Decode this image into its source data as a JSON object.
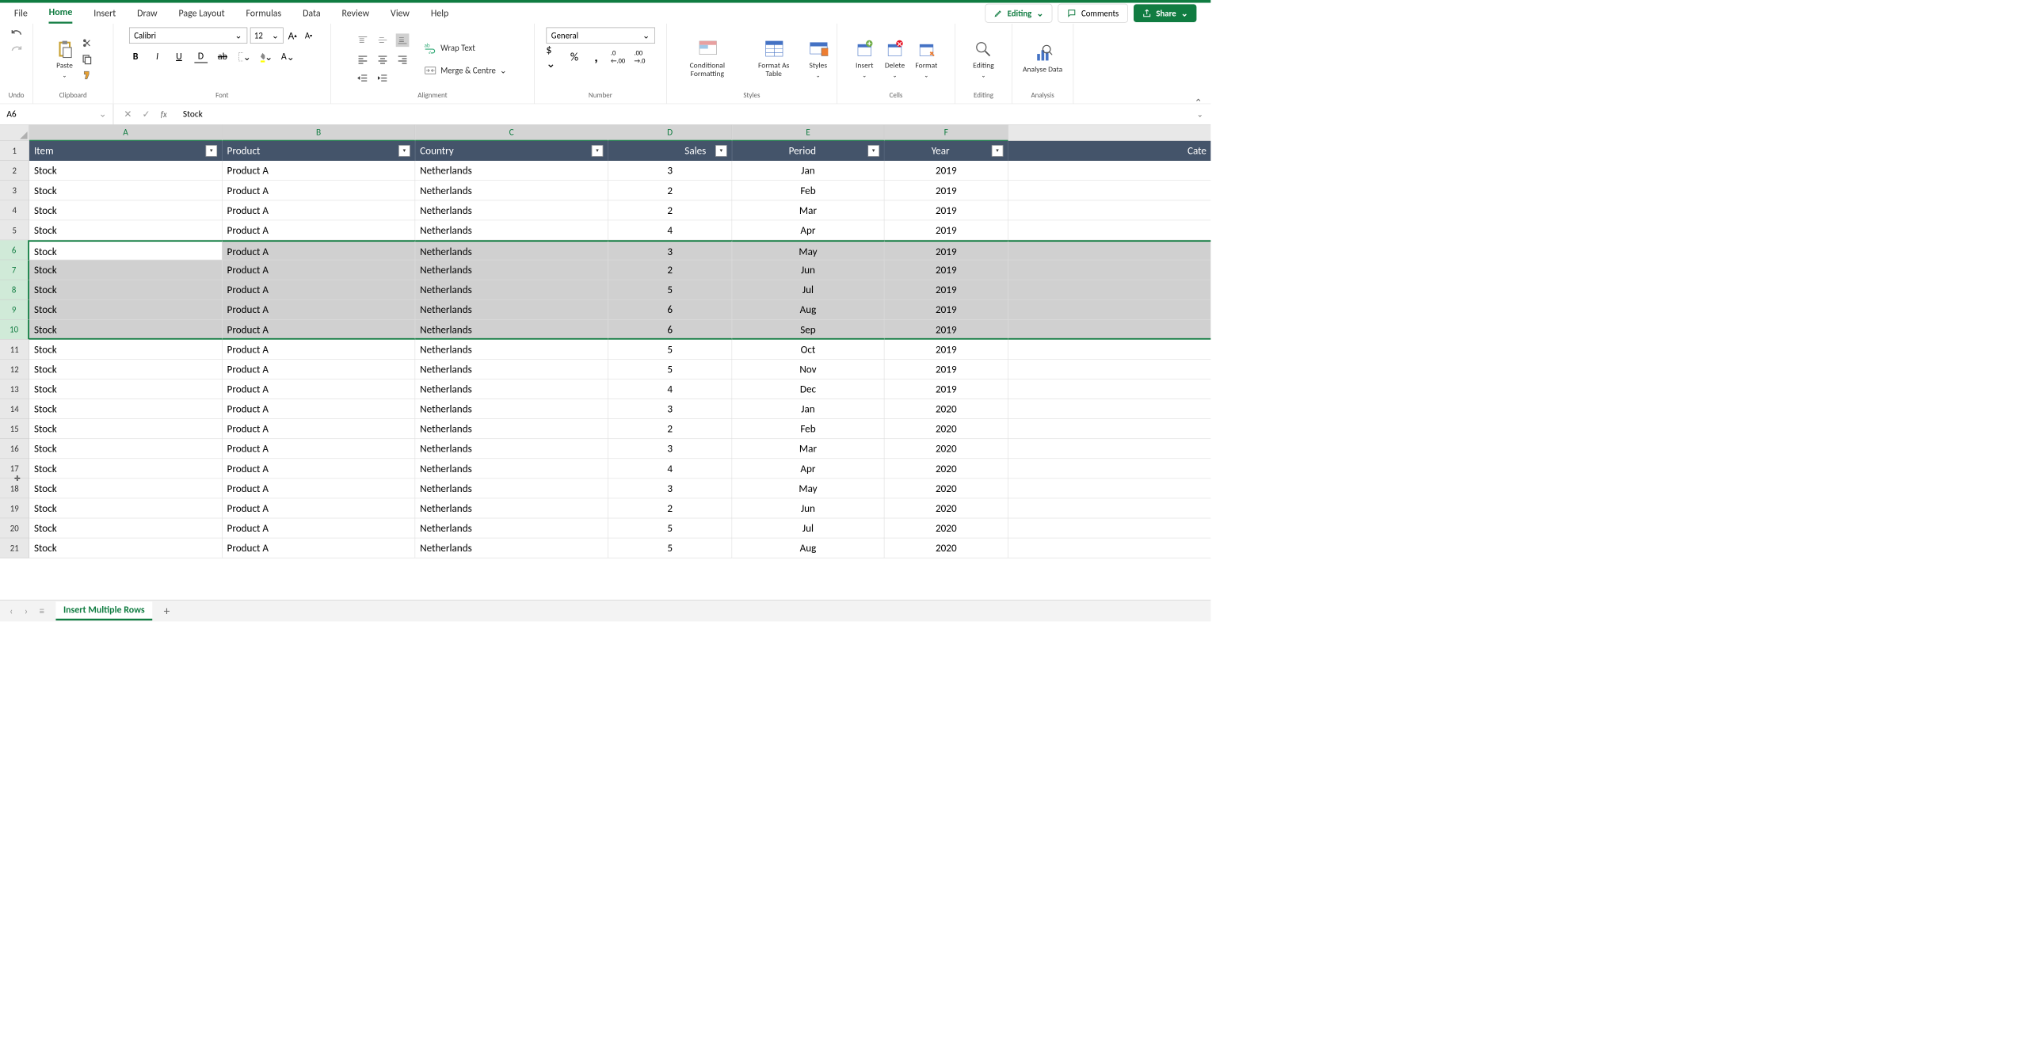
{
  "tabs": {
    "file": "File",
    "home": "Home",
    "insert": "Insert",
    "draw": "Draw",
    "pageLayout": "Page Layout",
    "formulas": "Formulas",
    "data": "Data",
    "review": "Review",
    "view": "View",
    "help": "Help"
  },
  "topRight": {
    "editing": "Editing",
    "comments": "Comments",
    "share": "Share"
  },
  "ribbon": {
    "undo": {
      "label": "Undo"
    },
    "clipboard": {
      "label": "Clipboard",
      "paste": "Paste"
    },
    "font": {
      "label": "Font",
      "name": "Calibri",
      "size": "12",
      "bold": "B",
      "italic": "I",
      "underline": "U"
    },
    "alignment": {
      "label": "Alignment",
      "wrap": "Wrap Text",
      "merge": "Merge & Centre"
    },
    "number": {
      "label": "Number",
      "format": "General"
    },
    "styles": {
      "label": "Styles",
      "conditional": "Conditional Formatting",
      "formatAs": "Format As Table",
      "cellStyles": "Styles"
    },
    "cells": {
      "label": "Cells",
      "insert": "Insert",
      "delete": "Delete",
      "format": "Format"
    },
    "editing": {
      "label": "Editing",
      "btn": "Editing"
    },
    "analysis": {
      "label": "Analysis",
      "analyse": "Analyse Data"
    }
  },
  "nameBox": "A6",
  "formula": "Stock",
  "columns": [
    "A",
    "B",
    "C",
    "D",
    "E",
    "F"
  ],
  "nextColHint": "Cate",
  "headers": {
    "item": "Item",
    "product": "Product",
    "country": "Country",
    "sales": "Sales",
    "period": "Period",
    "year": "Year"
  },
  "selectedRows": [
    6,
    7,
    8,
    9,
    10
  ],
  "activeCell": {
    "row": 6,
    "col": 0
  },
  "rows": [
    {
      "n": 1
    },
    {
      "n": 2,
      "item": "Stock",
      "product": "Product A",
      "country": "Netherlands",
      "sales": "3",
      "period": "Jan",
      "year": "2019"
    },
    {
      "n": 3,
      "item": "Stock",
      "product": "Product A",
      "country": "Netherlands",
      "sales": "2",
      "period": "Feb",
      "year": "2019"
    },
    {
      "n": 4,
      "item": "Stock",
      "product": "Product A",
      "country": "Netherlands",
      "sales": "2",
      "period": "Mar",
      "year": "2019"
    },
    {
      "n": 5,
      "item": "Stock",
      "product": "Product A",
      "country": "Netherlands",
      "sales": "4",
      "period": "Apr",
      "year": "2019"
    },
    {
      "n": 6,
      "item": "Stock",
      "product": "Product A",
      "country": "Netherlands",
      "sales": "3",
      "period": "May",
      "year": "2019"
    },
    {
      "n": 7,
      "item": "Stock",
      "product": "Product A",
      "country": "Netherlands",
      "sales": "2",
      "period": "Jun",
      "year": "2019"
    },
    {
      "n": 8,
      "item": "Stock",
      "product": "Product A",
      "country": "Netherlands",
      "sales": "5",
      "period": "Jul",
      "year": "2019"
    },
    {
      "n": 9,
      "item": "Stock",
      "product": "Product A",
      "country": "Netherlands",
      "sales": "6",
      "period": "Aug",
      "year": "2019"
    },
    {
      "n": 10,
      "item": "Stock",
      "product": "Product A",
      "country": "Netherlands",
      "sales": "6",
      "period": "Sep",
      "year": "2019"
    },
    {
      "n": 11,
      "item": "Stock",
      "product": "Product A",
      "country": "Netherlands",
      "sales": "5",
      "period": "Oct",
      "year": "2019"
    },
    {
      "n": 12,
      "item": "Stock",
      "product": "Product A",
      "country": "Netherlands",
      "sales": "5",
      "period": "Nov",
      "year": "2019"
    },
    {
      "n": 13,
      "item": "Stock",
      "product": "Product A",
      "country": "Netherlands",
      "sales": "4",
      "period": "Dec",
      "year": "2019"
    },
    {
      "n": 14,
      "item": "Stock",
      "product": "Product A",
      "country": "Netherlands",
      "sales": "3",
      "period": "Jan",
      "year": "2020"
    },
    {
      "n": 15,
      "item": "Stock",
      "product": "Product A",
      "country": "Netherlands",
      "sales": "2",
      "period": "Feb",
      "year": "2020"
    },
    {
      "n": 16,
      "item": "Stock",
      "product": "Product A",
      "country": "Netherlands",
      "sales": "3",
      "period": "Mar",
      "year": "2020"
    },
    {
      "n": 17,
      "item": "Stock",
      "product": "Product A",
      "country": "Netherlands",
      "sales": "4",
      "period": "Apr",
      "year": "2020"
    },
    {
      "n": 18,
      "item": "Stock",
      "product": "Product A",
      "country": "Netherlands",
      "sales": "3",
      "period": "May",
      "year": "2020"
    },
    {
      "n": 19,
      "item": "Stock",
      "product": "Product A",
      "country": "Netherlands",
      "sales": "2",
      "period": "Jun",
      "year": "2020"
    },
    {
      "n": 20,
      "item": "Stock",
      "product": "Product A",
      "country": "Netherlands",
      "sales": "5",
      "period": "Jul",
      "year": "2020"
    },
    {
      "n": 21,
      "item": "Stock",
      "product": "Product A",
      "country": "Netherlands",
      "sales": "5",
      "period": "Aug",
      "year": "2020"
    }
  ],
  "sheet": {
    "name": "Insert Multiple Rows"
  },
  "colors": {
    "accent": "#107c41",
    "tableHeader": "#44546a",
    "selection": "#d0d0d0",
    "rowSelHeader": "#d0ead8"
  }
}
